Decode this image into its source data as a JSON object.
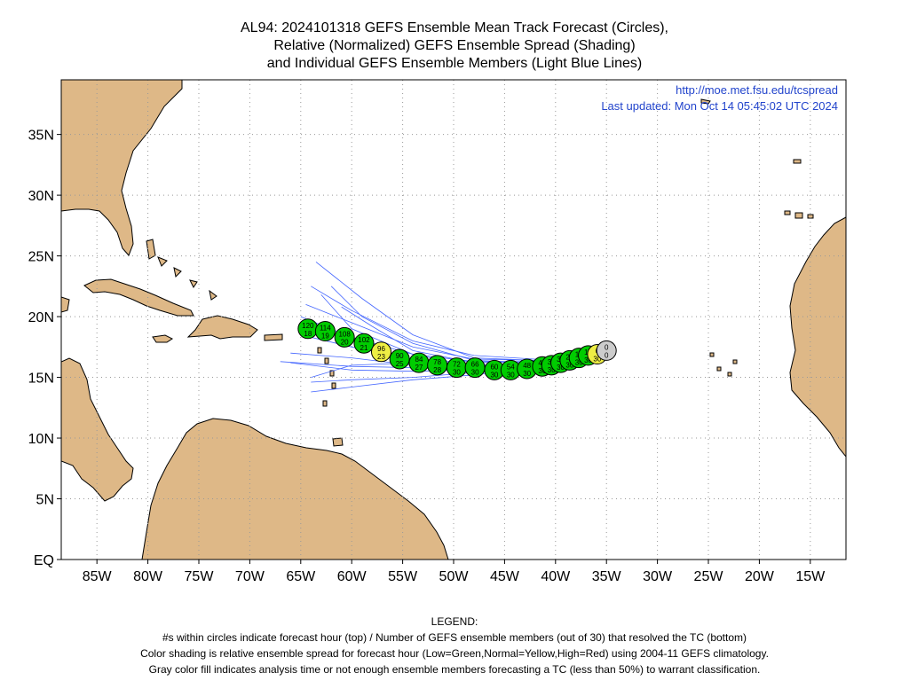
{
  "title_lines": [
    "AL94: 2024101318 GEFS Ensemble Mean Track Forecast (Circles),",
    "Relative (Normalized) GEFS Ensemble Spread (Shading)",
    "and Individual GEFS Ensemble Members (Light Blue Lines)"
  ],
  "source_url": "http://moe.met.fsu.edu/tcspread",
  "last_updated": "Last updated: Mon Oct 14 05:45:02 UTC 2024",
  "map": {
    "lon_min": -88.5,
    "lon_max": -11.5,
    "lat_min": 0,
    "lat_max": 39.5,
    "lon_ticks": [
      {
        "lon": -85,
        "label": "85W"
      },
      {
        "lon": -80,
        "label": "80W"
      },
      {
        "lon": -75,
        "label": "75W"
      },
      {
        "lon": -70,
        "label": "70W"
      },
      {
        "lon": -65,
        "label": "65W"
      },
      {
        "lon": -60,
        "label": "60W"
      },
      {
        "lon": -55,
        "label": "55W"
      },
      {
        "lon": -50,
        "label": "50W"
      },
      {
        "lon": -45,
        "label": "45W"
      },
      {
        "lon": -40,
        "label": "40W"
      },
      {
        "lon": -35,
        "label": "35W"
      },
      {
        "lon": -30,
        "label": "30W"
      },
      {
        "lon": -25,
        "label": "25W"
      },
      {
        "lon": -20,
        "label": "20W"
      },
      {
        "lon": -15,
        "label": "15W"
      }
    ],
    "lat_ticks": [
      {
        "lat": 0,
        "label": "EQ"
      },
      {
        "lat": 5,
        "label": "5N"
      },
      {
        "lat": 10,
        "label": "10N"
      },
      {
        "lat": 15,
        "label": "15N"
      },
      {
        "lat": 20,
        "label": "20N"
      },
      {
        "lat": 25,
        "label": "25N"
      },
      {
        "lat": 30,
        "label": "30N"
      },
      {
        "lat": 35,
        "label": "35N"
      }
    ],
    "grid": true,
    "land_color": "#deb887",
    "ocean_color": "#ffffff",
    "member_line_color": "#4466ff"
  },
  "track": [
    {
      "hour": "0",
      "members": "0",
      "lon": -35.0,
      "lat": 17.2,
      "spread": "gray"
    },
    {
      "hour": "6",
      "members": "30",
      "lon": -35.9,
      "lat": 16.9,
      "spread": "yellow"
    },
    {
      "hour": "12",
      "members": "30",
      "lon": -36.8,
      "lat": 16.8,
      "spread": "green"
    },
    {
      "hour": "18",
      "members": "30",
      "lon": -37.7,
      "lat": 16.6,
      "spread": "green"
    },
    {
      "hour": "24",
      "members": "30",
      "lon": -38.6,
      "lat": 16.4,
      "spread": "green"
    },
    {
      "hour": "30",
      "members": "30",
      "lon": -39.5,
      "lat": 16.2,
      "spread": "green"
    },
    {
      "hour": "36",
      "members": "30",
      "lon": -40.4,
      "lat": 16.0,
      "spread": "green"
    },
    {
      "hour": "42",
      "members": "30",
      "lon": -41.3,
      "lat": 15.9,
      "spread": "green"
    },
    {
      "hour": "48",
      "members": "30",
      "lon": -42.8,
      "lat": 15.7,
      "spread": "green"
    },
    {
      "hour": "54",
      "members": "30",
      "lon": -44.4,
      "lat": 15.6,
      "spread": "green"
    },
    {
      "hour": "60",
      "members": "30",
      "lon": -46.0,
      "lat": 15.6,
      "spread": "green"
    },
    {
      "hour": "66",
      "members": "30",
      "lon": -47.9,
      "lat": 15.8,
      "spread": "green"
    },
    {
      "hour": "72",
      "members": "30",
      "lon": -49.7,
      "lat": 15.8,
      "spread": "green"
    },
    {
      "hour": "78",
      "members": "28",
      "lon": -51.6,
      "lat": 16.0,
      "spread": "green"
    },
    {
      "hour": "84",
      "members": "27",
      "lon": -53.4,
      "lat": 16.2,
      "spread": "green"
    },
    {
      "hour": "90",
      "members": "25",
      "lon": -55.3,
      "lat": 16.5,
      "spread": "green"
    },
    {
      "hour": "96",
      "members": "23",
      "lon": -57.1,
      "lat": 17.1,
      "spread": "yellow"
    },
    {
      "hour": "102",
      "members": "21",
      "lon": -58.8,
      "lat": 17.8,
      "spread": "green"
    },
    {
      "hour": "108",
      "members": "20",
      "lon": -60.7,
      "lat": 18.3,
      "spread": "green"
    },
    {
      "hour": "114",
      "members": "19",
      "lon": -62.6,
      "lat": 18.8,
      "spread": "green"
    },
    {
      "hour": "120",
      "members": "18",
      "lon": -64.3,
      "lat": 19.0,
      "spread": "green"
    }
  ],
  "spread_colors": {
    "green": "#00cc00",
    "yellow": "#eeee44",
    "gray": "#cccccc"
  },
  "members_tracks": [
    [
      [
        -36,
        17.0
      ],
      [
        -42,
        16.4
      ],
      [
        -48,
        16.6
      ],
      [
        -54,
        18.5
      ],
      [
        -59,
        21.5
      ],
      [
        -63.5,
        24.5
      ]
    ],
    [
      [
        -36,
        17.0
      ],
      [
        -42,
        16.5
      ],
      [
        -48,
        16.8
      ],
      [
        -54,
        18.0
      ],
      [
        -60,
        20.5
      ],
      [
        -64,
        22.5
      ]
    ],
    [
      [
        -36,
        17.0
      ],
      [
        -42,
        16.4
      ],
      [
        -48,
        16.5
      ],
      [
        -54,
        17.5
      ],
      [
        -60,
        19.5
      ],
      [
        -64.5,
        21.0
      ]
    ],
    [
      [
        -36,
        17.0
      ],
      [
        -42,
        16.3
      ],
      [
        -48,
        16.3
      ],
      [
        -54,
        16.9
      ],
      [
        -60,
        18.3
      ],
      [
        -65,
        20.0
      ]
    ],
    [
      [
        -36,
        17.0
      ],
      [
        -42,
        16.2
      ],
      [
        -48,
        16.0
      ],
      [
        -54,
        16.5
      ],
      [
        -60,
        17.5
      ],
      [
        -65,
        18.5
      ]
    ],
    [
      [
        -36,
        17.0
      ],
      [
        -42,
        16.2
      ],
      [
        -48,
        15.8
      ],
      [
        -54,
        16.0
      ],
      [
        -60,
        16.6
      ],
      [
        -66,
        17.0
      ]
    ],
    [
      [
        -36,
        17.0
      ],
      [
        -42,
        16.0
      ],
      [
        -48,
        15.6
      ],
      [
        -54,
        15.5
      ],
      [
        -60,
        15.6
      ],
      [
        -66,
        16.2
      ]
    ],
    [
      [
        -36,
        17.0
      ],
      [
        -42,
        16.0
      ],
      [
        -48,
        15.4
      ],
      [
        -54,
        15.0
      ],
      [
        -60,
        14.8
      ],
      [
        -64,
        14.6
      ]
    ],
    [
      [
        -36,
        17.0
      ],
      [
        -42,
        15.9
      ],
      [
        -48,
        15.2
      ],
      [
        -54,
        14.8
      ],
      [
        -60,
        14.2
      ],
      [
        -64,
        13.8
      ]
    ],
    [
      [
        -36,
        17.0
      ],
      [
        -42,
        16.1
      ],
      [
        -48,
        15.9
      ],
      [
        -54,
        16.9
      ],
      [
        -60,
        19.0
      ],
      [
        -63,
        21.8
      ]
    ],
    [
      [
        -36,
        17.0
      ],
      [
        -42,
        16.3
      ],
      [
        -48,
        16.2
      ],
      [
        -54,
        17.2
      ],
      [
        -58,
        19.2
      ],
      [
        -61,
        20.8
      ]
    ],
    [
      [
        -36,
        17.0
      ],
      [
        -42,
        16.1
      ],
      [
        -48,
        15.7
      ],
      [
        -54,
        15.8
      ],
      [
        -60,
        15.9
      ],
      [
        -67,
        16.3
      ]
    ],
    [
      [
        -36,
        17.0
      ],
      [
        -42,
        16.2
      ],
      [
        -48,
        16.0
      ],
      [
        -54,
        16.2
      ],
      [
        -60,
        16.0
      ],
      [
        -64,
        15.0
      ]
    ],
    [
      [
        -36,
        17.0
      ],
      [
        -42,
        16.2
      ],
      [
        -48,
        16.4
      ],
      [
        -54,
        17.8
      ],
      [
        -59,
        20.0
      ],
      [
        -62,
        22.5
      ]
    ]
  ],
  "legend": {
    "heading": "LEGEND:",
    "lines": [
      "#s within circles indicate forecast hour (top) / Number of GEFS ensemble members (out of 30) that resolved the TC (bottom)",
      "Color shading is relative ensemble spread for forecast hour (Low=Green,Normal=Yellow,High=Red) using 2004-11 GEFS climatology.",
      "Gray color fill indicates analysis time or not enough ensemble members forecasting a TC (less than 50%) to warrant classification."
    ]
  }
}
